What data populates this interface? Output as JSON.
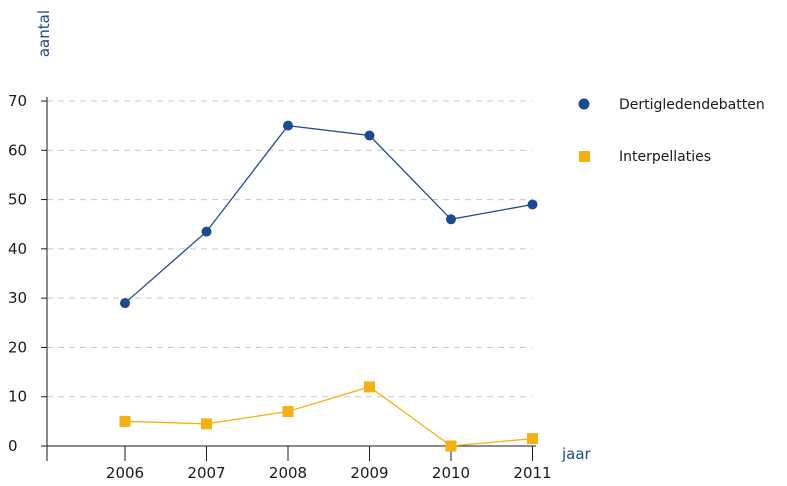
{
  "chart_data": {
    "type": "line",
    "title": "",
    "xlabel": "jaar",
    "ylabel": "aantal",
    "categories": [
      "2006",
      "2007",
      "2008",
      "2009",
      "2010",
      "2011"
    ],
    "ylim": [
      0,
      70
    ],
    "yticks": [
      "0",
      "10",
      "20",
      "30",
      "40",
      "50",
      "60",
      "70"
    ],
    "grid": true,
    "legend_position": "right",
    "series": [
      {
        "name": "Dertigledendebatten",
        "values": [
          29,
          43.5,
          65,
          63,
          46,
          49
        ],
        "color": "#1e4b8f",
        "marker": "circle"
      },
      {
        "name": "Interpellaties",
        "values": [
          5,
          4.5,
          7,
          12,
          0,
          1.5
        ],
        "color": "#f5b014",
        "marker": "square"
      }
    ]
  },
  "colors": {
    "axis": "#1a1a1a",
    "grid": "#c8c8c8",
    "axis_title": "#1e4b8f"
  }
}
